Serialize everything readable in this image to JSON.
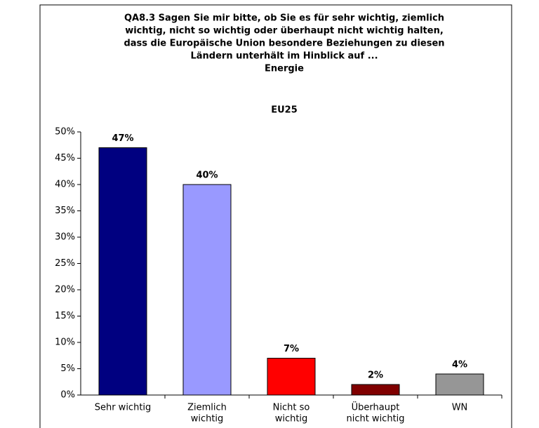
{
  "chart_data": {
    "type": "bar",
    "title": [
      "QA8.3 Sagen Sie mir bitte, ob Sie es für sehr wichtig, ziemlich",
      "wichtig, nicht so wichtig oder überhaupt nicht wichtig halten,",
      "dass die Europäische Union besondere Beziehungen zu diesen",
      "Ländern unterhält im Hinblick auf ...",
      "Energie"
    ],
    "subtitle": "EU25",
    "categories": [
      [
        "Sehr wichtig"
      ],
      [
        "Ziemlich",
        "wichtig"
      ],
      [
        "Nicht so",
        "wichtig"
      ],
      [
        "Überhaupt",
        "nicht wichtig"
      ],
      [
        "WN"
      ]
    ],
    "values": [
      47,
      40,
      7,
      2,
      4
    ],
    "value_labels": [
      "47%",
      "40%",
      "7%",
      "2%",
      "4%"
    ],
    "colors": [
      "#000080",
      "#9999ff",
      "#ff0000",
      "#800000",
      "#969696"
    ],
    "ylim": [
      0,
      50
    ],
    "yticks": [
      {
        "value": 0,
        "label": "0%"
      },
      {
        "value": 5,
        "label": "5%"
      },
      {
        "value": 10,
        "label": "10%"
      },
      {
        "value": 15,
        "label": "15%"
      },
      {
        "value": 20,
        "label": "20%"
      },
      {
        "value": 25,
        "label": "25%"
      },
      {
        "value": 30,
        "label": "30%"
      },
      {
        "value": 35,
        "label": "35%"
      },
      {
        "value": 40,
        "label": "40%"
      },
      {
        "value": 45,
        "label": "45%"
      },
      {
        "value": 50,
        "label": "50%"
      }
    ],
    "grid": false
  }
}
